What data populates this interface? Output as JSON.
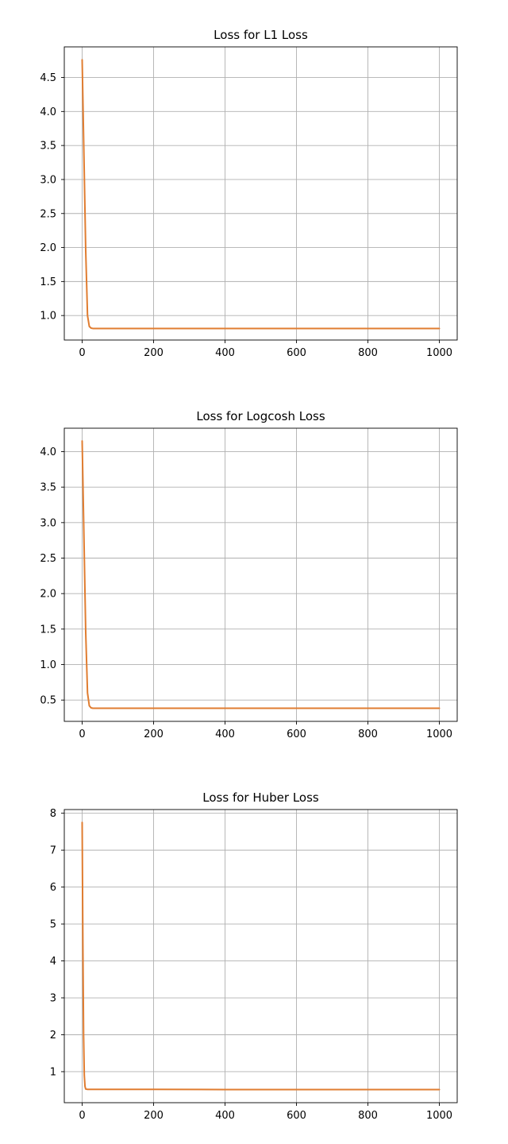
{
  "colors": {
    "series": "#e07d31",
    "grid": "#b0b0b0",
    "background": "#ffffff"
  },
  "chart_data": [
    {
      "type": "line",
      "title": "Loss for L1 Loss",
      "xlabel": "",
      "ylabel": "",
      "grid": true,
      "xlim": [
        -50,
        1050
      ],
      "ylim": [
        0.64,
        4.95
      ],
      "xticks": [
        0,
        200,
        400,
        600,
        800,
        1000
      ],
      "xtick_labels": [
        "0",
        "200",
        "400",
        "600",
        "800",
        "1000"
      ],
      "yticks": [
        1.0,
        1.5,
        2.0,
        2.5,
        3.0,
        3.5,
        4.0,
        4.5
      ],
      "ytick_labels": [
        "1.0",
        "1.5",
        "2.0",
        "2.5",
        "3.0",
        "3.5",
        "4.0",
        "4.5"
      ],
      "series": [
        {
          "x": [
            0,
            5,
            10,
            15,
            20,
            25,
            30,
            50,
            100,
            200,
            400,
            600,
            800,
            1000
          ],
          "y": [
            4.76,
            3.35,
            1.95,
            1.0,
            0.84,
            0.815,
            0.81,
            0.81,
            0.81,
            0.81,
            0.809,
            0.809,
            0.809,
            0.809
          ]
        }
      ]
    },
    {
      "type": "line",
      "title": "Loss for Logcosh Loss",
      "xlabel": "",
      "ylabel": "",
      "grid": true,
      "xlim": [
        -50,
        1050
      ],
      "ylim": [
        0.2,
        4.33
      ],
      "xticks": [
        0,
        200,
        400,
        600,
        800,
        1000
      ],
      "xtick_labels": [
        "0",
        "200",
        "400",
        "600",
        "800",
        "1000"
      ],
      "yticks": [
        0.5,
        1.0,
        1.5,
        2.0,
        2.5,
        3.0,
        3.5,
        4.0
      ],
      "ytick_labels": [
        "0.5",
        "1.0",
        "1.5",
        "2.0",
        "2.5",
        "3.0",
        "3.5",
        "4.0"
      ],
      "series": [
        {
          "x": [
            0,
            5,
            10,
            15,
            20,
            25,
            30,
            50,
            100,
            200,
            400,
            600,
            800,
            1000
          ],
          "y": [
            4.15,
            2.8,
            1.45,
            0.6,
            0.42,
            0.39,
            0.385,
            0.385,
            0.385,
            0.385,
            0.385,
            0.385,
            0.385,
            0.385
          ]
        }
      ]
    },
    {
      "type": "line",
      "title": "Loss for Huber Loss",
      "xlabel": "",
      "ylabel": "",
      "grid": true,
      "xlim": [
        -50,
        1050
      ],
      "ylim": [
        0.16,
        8.1
      ],
      "xticks": [
        0,
        200,
        400,
        600,
        800,
        1000
      ],
      "xtick_labels": [
        "0",
        "200",
        "400",
        "600",
        "800",
        "1000"
      ],
      "yticks": [
        1,
        2,
        3,
        4,
        5,
        6,
        7,
        8
      ],
      "ytick_labels": [
        "1",
        "2",
        "3",
        "4",
        "5",
        "6",
        "7",
        "8"
      ],
      "series": [
        {
          "x": [
            0,
            2,
            4,
            6,
            8,
            10,
            15,
            30,
            100,
            200,
            400,
            600,
            800,
            1000
          ],
          "y": [
            7.75,
            4.5,
            2.0,
            0.9,
            0.6,
            0.53,
            0.52,
            0.52,
            0.52,
            0.52,
            0.515,
            0.515,
            0.515,
            0.515
          ]
        }
      ]
    }
  ]
}
